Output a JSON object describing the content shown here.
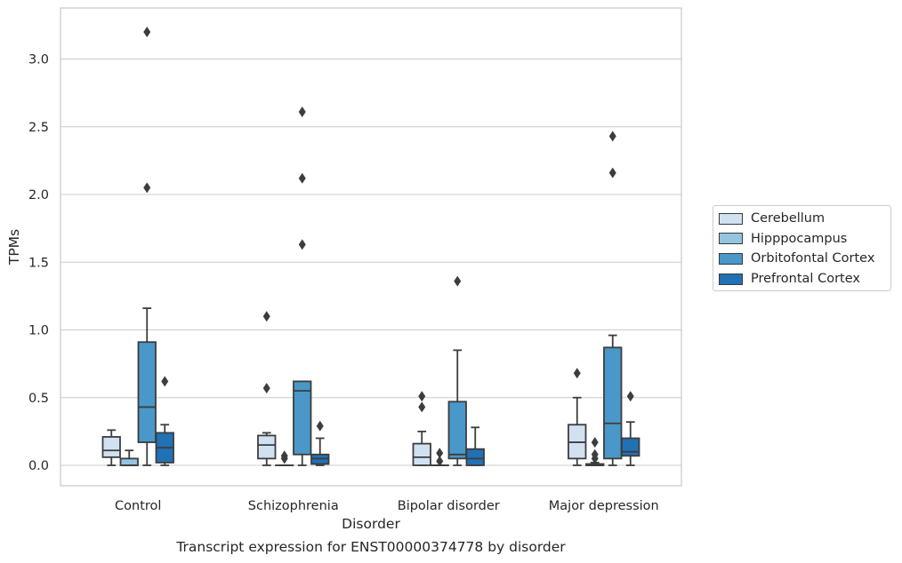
{
  "caption": "Transcript expression for ENST00000374778 by disorder",
  "chart_data": {
    "type": "box",
    "title": "",
    "xlabel": "Disorder",
    "ylabel": "TPMs",
    "ylim": [
      -0.15,
      3.38
    ],
    "yticks": [
      0.0,
      0.5,
      1.0,
      1.5,
      2.0,
      2.5,
      3.0
    ],
    "ytick_labels": [
      "0.0",
      "0.5",
      "1.0",
      "1.5",
      "2.0",
      "2.5",
      "3.0"
    ],
    "grid": "horizontal",
    "legend_position": "right",
    "categories": [
      "Control",
      "Schizophrenia",
      "Bipolar disorder",
      "Major depression"
    ],
    "series": [
      {
        "name": "Cerebellum",
        "color": "#d0e1f2",
        "boxes": [
          {
            "whisker_low": 0.0,
            "q1": 0.06,
            "median": 0.11,
            "q3": 0.21,
            "whisker_high": 0.26,
            "outliers": []
          },
          {
            "whisker_low": 0.0,
            "q1": 0.05,
            "median": 0.15,
            "q3": 0.22,
            "whisker_high": 0.24,
            "outliers": [
              0.57,
              1.1
            ]
          },
          {
            "whisker_low": 0.0,
            "q1": 0.0,
            "median": 0.06,
            "q3": 0.16,
            "whisker_high": 0.25,
            "outliers": [
              0.43,
              0.51
            ]
          },
          {
            "whisker_low": 0.0,
            "q1": 0.05,
            "median": 0.17,
            "q3": 0.3,
            "whisker_high": 0.5,
            "outliers": [
              0.68
            ]
          }
        ]
      },
      {
        "name": "Hipppocampus",
        "color": "#94c4df",
        "boxes": [
          {
            "whisker_low": 0.0,
            "q1": 0.0,
            "median": 0.0,
            "q3": 0.05,
            "whisker_high": 0.11,
            "outliers": []
          },
          {
            "whisker_low": 0.0,
            "q1": 0.0,
            "median": 0.0,
            "q3": 0.0,
            "whisker_high": 0.0,
            "outliers": [
              0.05,
              0.07
            ]
          },
          {
            "whisker_low": 0.0,
            "q1": 0.0,
            "median": 0.0,
            "q3": 0.0,
            "whisker_high": 0.0,
            "outliers": [
              0.03,
              0.09
            ]
          },
          {
            "whisker_low": 0.0,
            "q1": 0.0,
            "median": 0.0,
            "q3": 0.01,
            "whisker_high": 0.02,
            "outliers": [
              0.05,
              0.08,
              0.17
            ]
          }
        ]
      },
      {
        "name": "Orbitofontal Cortex",
        "color": "#4a98c9",
        "boxes": [
          {
            "whisker_low": 0.0,
            "q1": 0.17,
            "median": 0.43,
            "q3": 0.91,
            "whisker_high": 1.16,
            "outliers": [
              2.05,
              3.2
            ]
          },
          {
            "whisker_low": 0.0,
            "q1": 0.08,
            "median": 0.55,
            "q3": 0.62,
            "whisker_high": 0.62,
            "outliers": [
              1.63,
              2.12,
              2.61
            ]
          },
          {
            "whisker_low": 0.0,
            "q1": 0.05,
            "median": 0.08,
            "q3": 0.47,
            "whisker_high": 0.85,
            "outliers": [
              1.36
            ]
          },
          {
            "whisker_low": 0.0,
            "q1": 0.05,
            "median": 0.31,
            "q3": 0.87,
            "whisker_high": 0.96,
            "outliers": [
              2.16,
              2.43
            ]
          }
        ]
      },
      {
        "name": "Prefrontal Cortex",
        "color": "#2171b5",
        "boxes": [
          {
            "whisker_low": 0.0,
            "q1": 0.02,
            "median": 0.13,
            "q3": 0.24,
            "whisker_high": 0.3,
            "outliers": [
              0.62
            ]
          },
          {
            "whisker_low": 0.0,
            "q1": 0.01,
            "median": 0.05,
            "q3": 0.08,
            "whisker_high": 0.2,
            "outliers": [
              0.29
            ]
          },
          {
            "whisker_low": 0.0,
            "q1": 0.0,
            "median": 0.05,
            "q3": 0.12,
            "whisker_high": 0.28,
            "outliers": []
          },
          {
            "whisker_low": 0.0,
            "q1": 0.07,
            "median": 0.1,
            "q3": 0.2,
            "whisker_high": 0.32,
            "outliers": [
              0.51
            ]
          }
        ]
      }
    ]
  }
}
